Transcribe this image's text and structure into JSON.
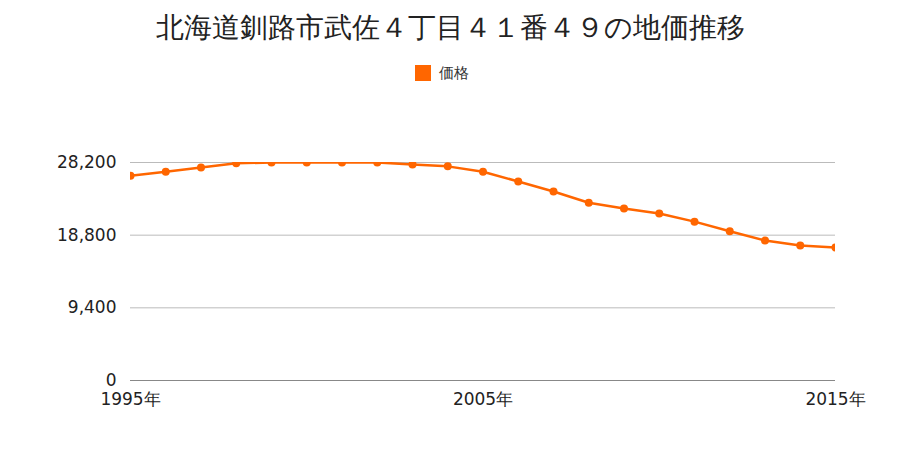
{
  "chart_data": {
    "type": "line",
    "title": "北海道釧路市武佐４丁目４１番４９の地価推移",
    "x": [
      1995,
      1996,
      1997,
      1998,
      1999,
      2000,
      2001,
      2002,
      2003,
      2004,
      2005,
      2006,
      2007,
      2008,
      2009,
      2010,
      2011,
      2012,
      2013,
      2014,
      2015
    ],
    "series": [
      {
        "name": "価格",
        "color": "#ff6600",
        "marker": "circle",
        "line_style": "solid",
        "values": [
          26500,
          27000,
          27550,
          28100,
          28200,
          28200,
          28200,
          28200,
          27950,
          27700,
          27000,
          25750,
          24450,
          23000,
          22250,
          21600,
          20550,
          19300,
          18100,
          17450,
          17200
        ]
      }
    ],
    "xlim": [
      1995,
      2015
    ],
    "xticks": [
      {
        "value": 1995,
        "label": "1995年"
      },
      {
        "value": 2005,
        "label": "2005年"
      },
      {
        "value": 2015,
        "label": "2015年"
      }
    ],
    "ylim": [
      0,
      28200
    ],
    "yticks": [
      0,
      {
        "value": 9400,
        "label": "9,400"
      },
      {
        "value": 18800,
        "label": "18,800"
      },
      {
        "value": 28200,
        "label": "28,200"
      }
    ],
    "grid": true,
    "legend": "top"
  }
}
